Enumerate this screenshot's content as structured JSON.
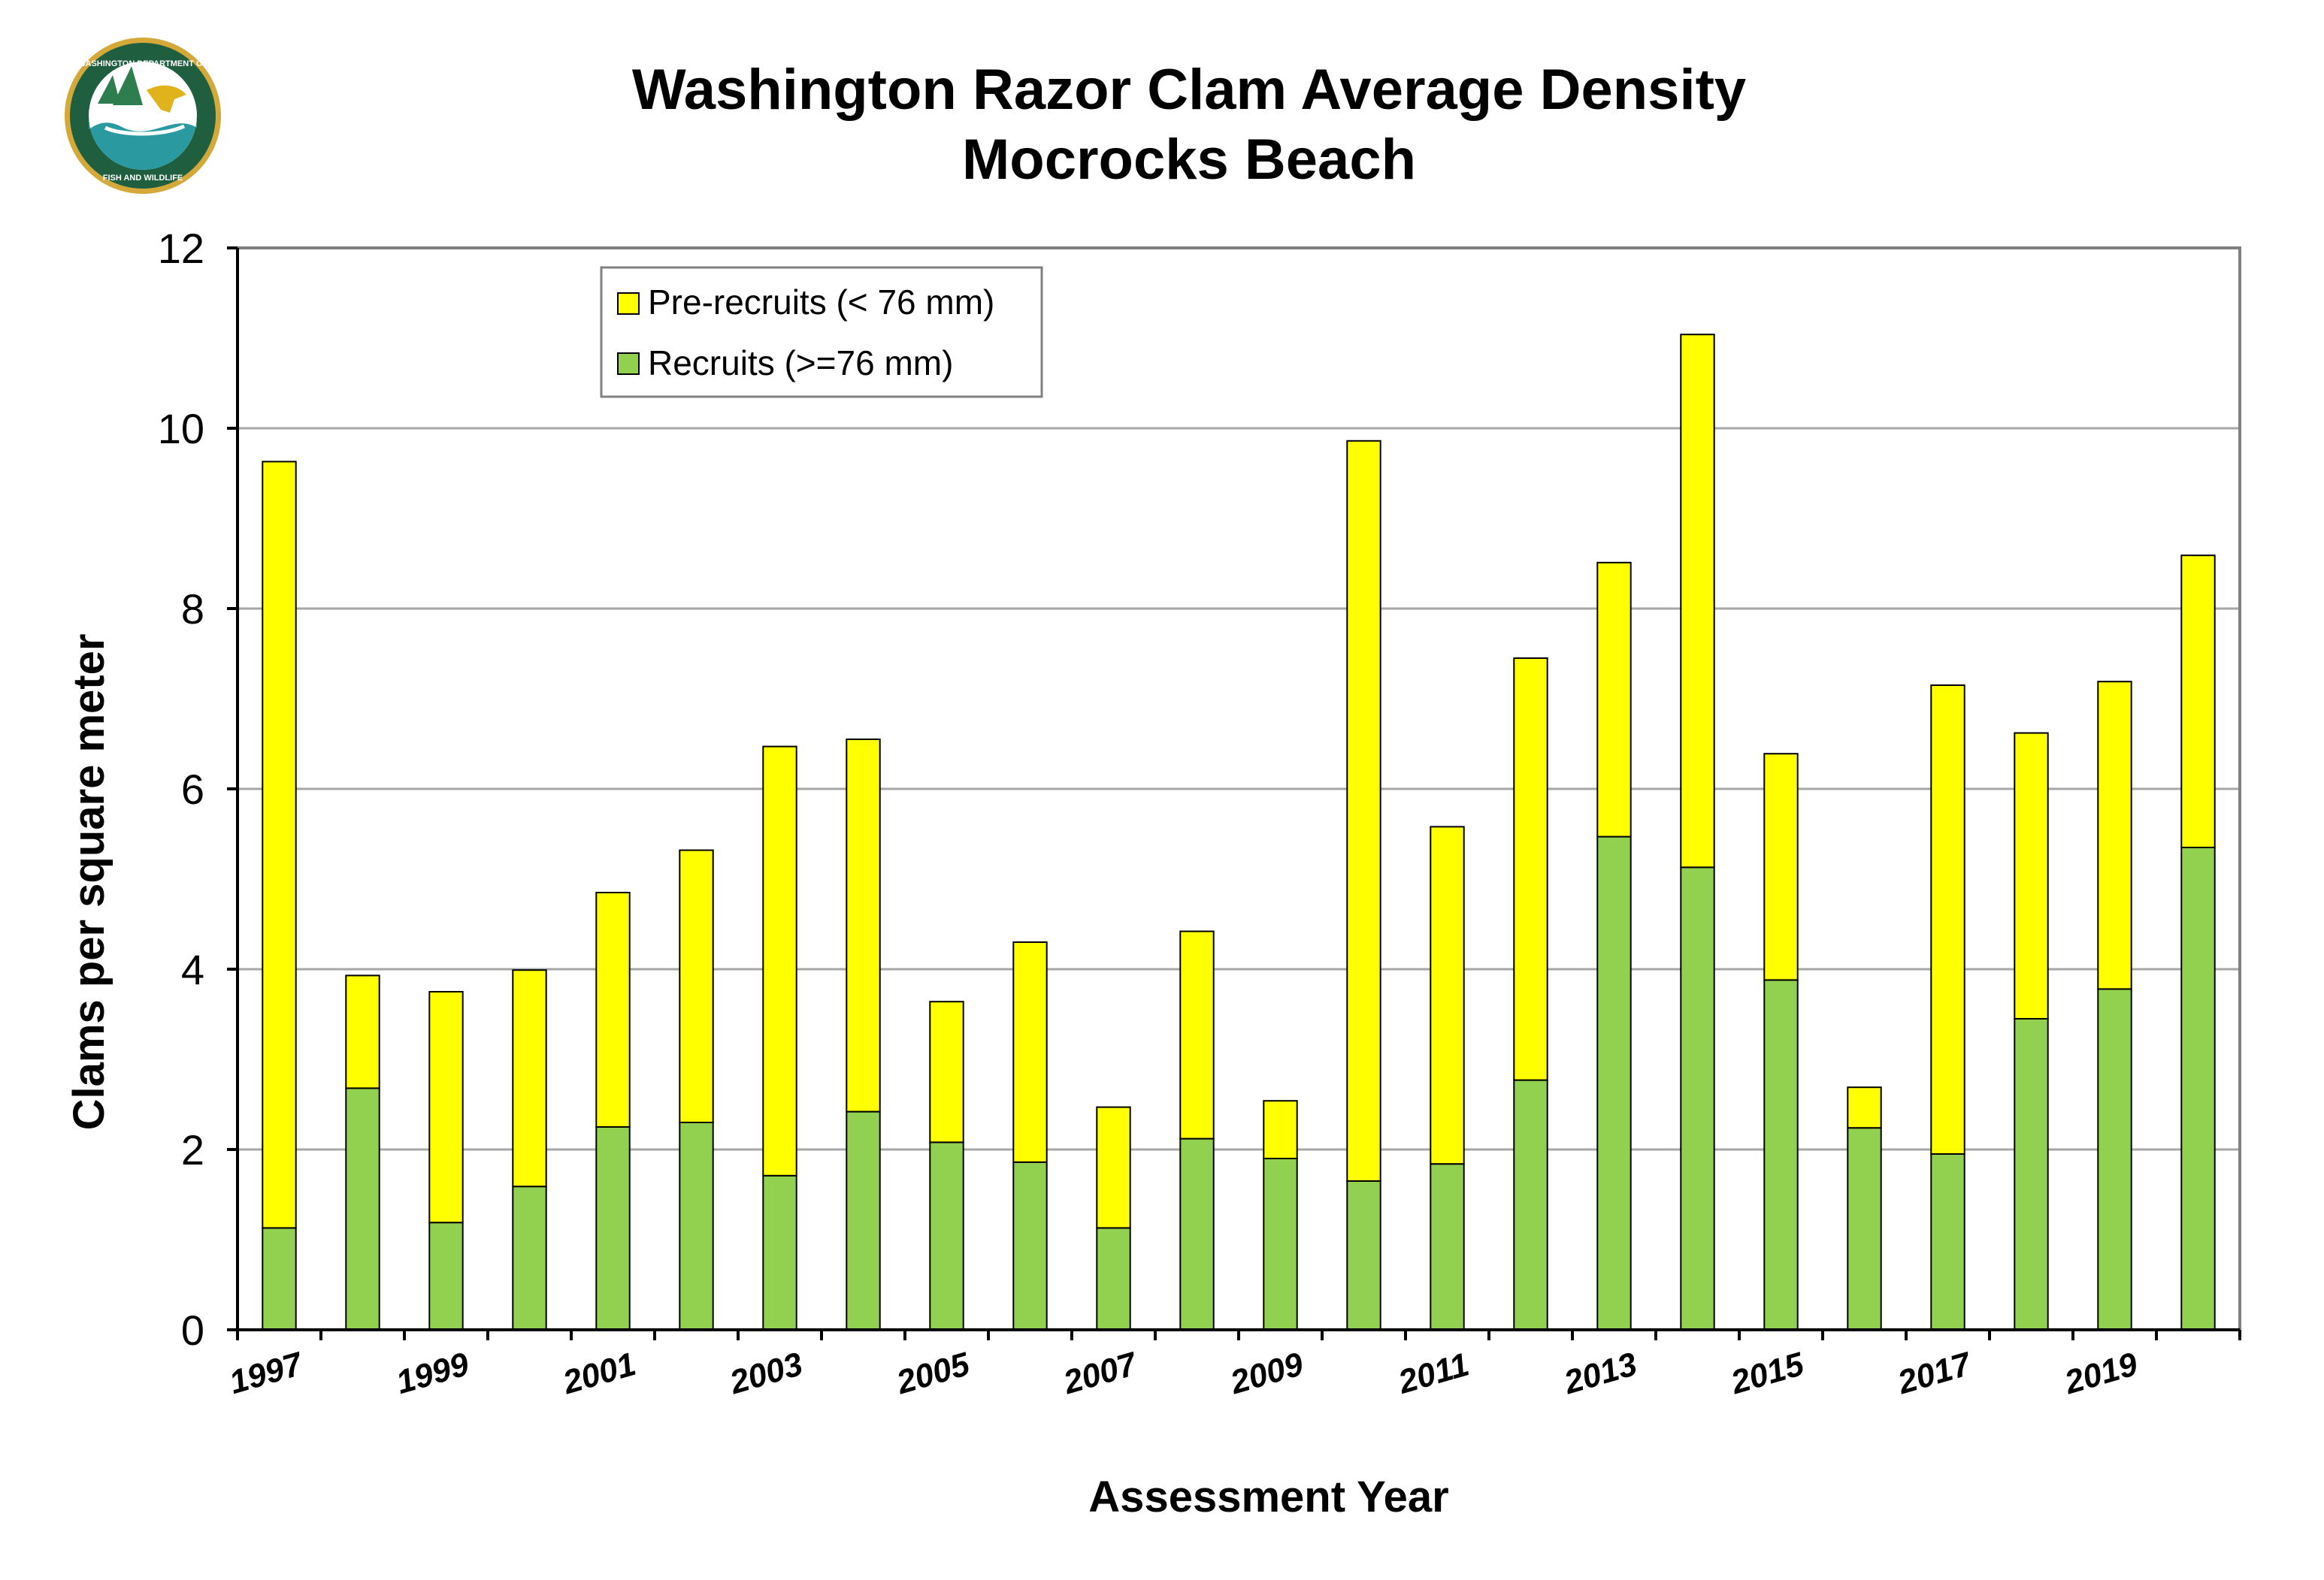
{
  "logo": {
    "top_text": "WASHINGTON DEPARTMENT OF",
    "bottom_text": "FISH AND WILDLIFE"
  },
  "colors": {
    "pre_recruits": "#ffff00",
    "recruits": "#92d050",
    "grid": "#a6a6a6",
    "bar_outline": "#000000",
    "logo_ring": "#1f5f3f",
    "logo_outer": "#d4a93a"
  },
  "chart_data": {
    "type": "bar",
    "stacked": true,
    "title": "Washington Razor Clam Average Density",
    "subtitle": "Mocrocks Beach",
    "xlabel": "Assessment Year",
    "ylabel": "Clams per square meter",
    "ylim": [
      0,
      12
    ],
    "yticks": [
      0,
      2,
      4,
      6,
      8,
      10,
      12
    ],
    "grid": true,
    "legend_position": "top-left",
    "categories": [
      "1997",
      "1998",
      "1999",
      "2000",
      "2001",
      "2002",
      "2003",
      "2004",
      "2005",
      "2006",
      "2007",
      "2008",
      "2009",
      "2010",
      "2011",
      "2012",
      "2013",
      "2014",
      "2015",
      "2016",
      "2017",
      "2018",
      "2019",
      "2020"
    ],
    "x_tick_labels": [
      "1997",
      "",
      "1999",
      "",
      "2001",
      "",
      "2003",
      "",
      "2005",
      "",
      "2007",
      "",
      "2009",
      "",
      "2011",
      "",
      "2013",
      "",
      "2015",
      "",
      "2017",
      "",
      "2019",
      ""
    ],
    "series": [
      {
        "name": "Recruits (>=76 mm)",
        "values": [
          1.13,
          2.68,
          1.19,
          1.59,
          2.25,
          2.3,
          1.71,
          2.42,
          2.08,
          1.86,
          1.13,
          2.12,
          1.9,
          1.65,
          1.84,
          2.77,
          5.47,
          5.13,
          3.88,
          2.24,
          1.95,
          3.45,
          3.78,
          5.35
        ]
      },
      {
        "name": "Pre-recruits (< 76 mm)",
        "values": [
          8.5,
          1.25,
          2.56,
          2.4,
          2.6,
          3.02,
          4.76,
          4.13,
          1.56,
          2.44,
          1.34,
          2.3,
          0.64,
          8.21,
          3.74,
          4.68,
          3.04,
          5.91,
          2.51,
          0.45,
          5.2,
          3.17,
          3.41,
          3.24
        ]
      }
    ]
  }
}
